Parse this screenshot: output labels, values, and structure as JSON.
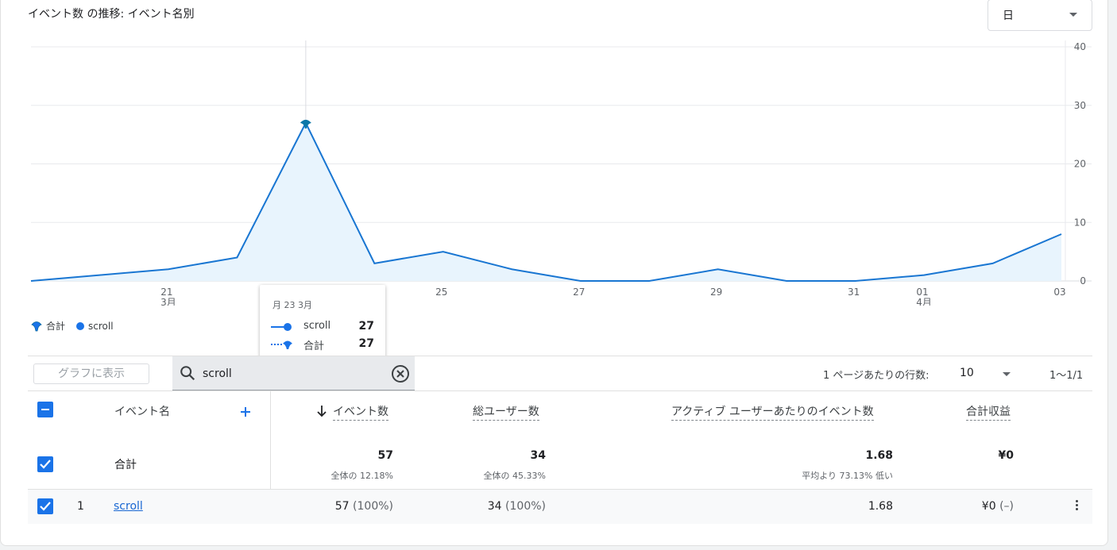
{
  "header": {
    "title": "イベント数 の推移: イベント名別",
    "granularity": "日"
  },
  "chart_data": {
    "type": "area",
    "x_tick_labels": [
      "21",
      "23",
      "25",
      "27",
      "29",
      "31",
      "01",
      "03"
    ],
    "x_month_labels": [
      {
        "under": "21",
        "label": "3月"
      },
      {
        "under": "01",
        "label": "4月"
      }
    ],
    "y_ticks": [
      0,
      10,
      20,
      30,
      40
    ],
    "ylim": [
      0,
      40
    ],
    "grid": true,
    "x": [
      "3/19",
      "3/20",
      "3/21",
      "3/22",
      "3/23",
      "3/24",
      "3/25",
      "3/26",
      "3/27",
      "3/28",
      "3/29",
      "3/30",
      "3/31",
      "4/1",
      "4/2",
      "4/3"
    ],
    "series": [
      {
        "name": "scroll",
        "values": [
          0,
          1,
          2,
          4,
          27,
          3,
          5,
          2,
          0,
          0,
          2,
          0,
          0,
          1,
          3,
          8
        ],
        "color": "#1a73e8"
      }
    ],
    "highlight": {
      "x": "3/23",
      "value": 27
    },
    "legend": [
      {
        "label": "合計",
        "icon": "total-marker"
      },
      {
        "label": "scroll",
        "icon": "dot"
      }
    ]
  },
  "tooltip": {
    "date": "月 23 3月",
    "rows": [
      {
        "label": "scroll",
        "value": "27"
      },
      {
        "label": "合計",
        "value": "27"
      }
    ]
  },
  "controls": {
    "plot_button": "グラフに表示",
    "search_value": "scroll",
    "rows_per_page_label": "1 ページあたりの行数:",
    "rows_per_page_value": "10",
    "pagination": "1〜1/1"
  },
  "table": {
    "headers": {
      "dimension": "イベント名",
      "event_count": "イベント数",
      "total_users": "総ユーザー数",
      "per_user": "アクティブ ユーザーあたりのイベント数",
      "revenue": "合計収益"
    },
    "total": {
      "label": "合計",
      "event_count": "57",
      "event_count_sub": "全体の 12.18%",
      "total_users": "34",
      "total_users_sub": "全体の 45.33%",
      "per_user": "1.68",
      "per_user_sub": "平均より 73.13% 低い",
      "revenue": "¥0"
    },
    "rows": [
      {
        "index": "1",
        "name": "scroll",
        "event_count": "57",
        "event_count_pct": "(100%)",
        "total_users": "34",
        "total_users_pct": "(100%)",
        "per_user": "1.68",
        "revenue": "¥0",
        "revenue_pct": "(–)"
      }
    ]
  }
}
